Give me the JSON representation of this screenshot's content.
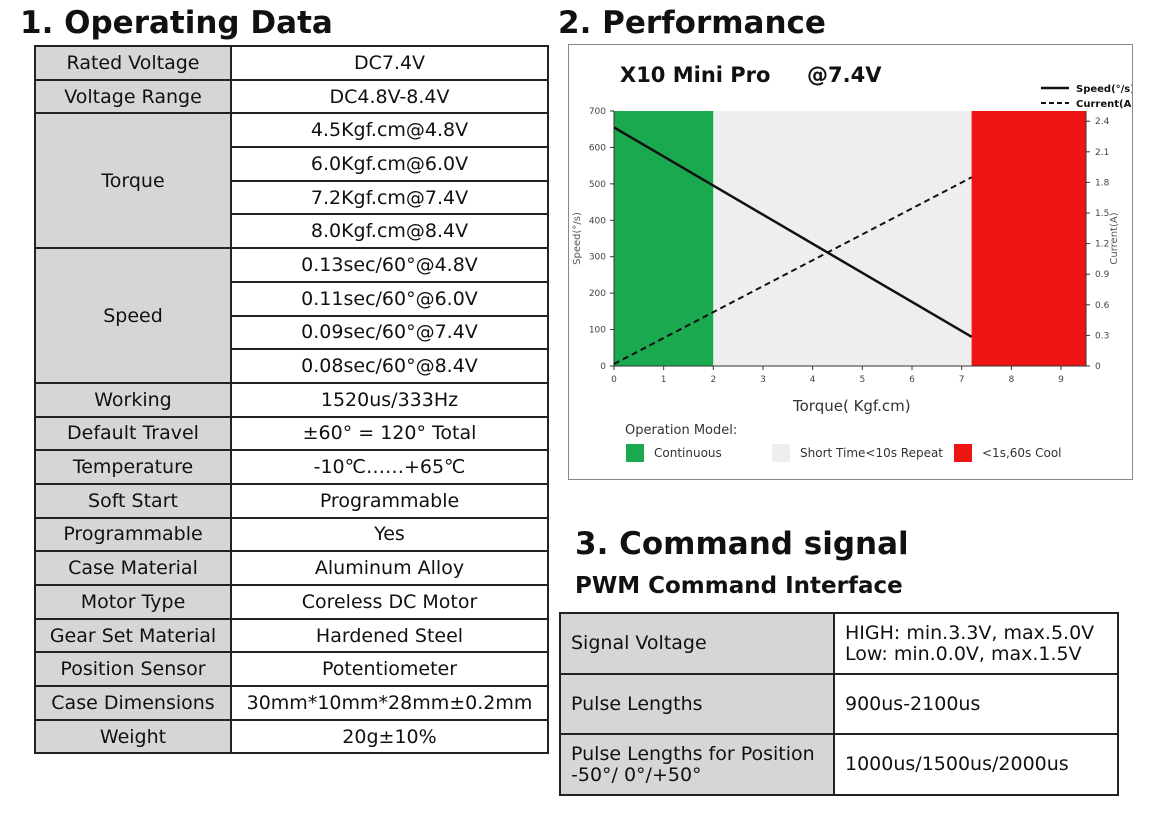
{
  "section1": {
    "title": "1. Operating Data",
    "rows": [
      {
        "label": "Rated Voltage",
        "values": [
          "DC7.4V"
        ]
      },
      {
        "label": "Voltage Range",
        "values": [
          "DC4.8V-8.4V"
        ]
      },
      {
        "label": "Torque",
        "values": [
          "4.5Kgf.cm@4.8V",
          "6.0Kgf.cm@6.0V",
          "7.2Kgf.cm@7.4V",
          "8.0Kgf.cm@8.4V"
        ]
      },
      {
        "label": "Speed",
        "values": [
          "0.13sec/60°@4.8V",
          "0.11sec/60°@6.0V",
          "0.09sec/60°@7.4V",
          "0.08sec/60°@8.4V"
        ]
      },
      {
        "label": "Working",
        "values": [
          "1520us/333Hz"
        ]
      },
      {
        "label": "Default Travel",
        "values": [
          "±60° = 120° Total"
        ]
      },
      {
        "label": "Temperature",
        "values": [
          "-10℃……+65℃"
        ]
      },
      {
        "label": "Soft Start",
        "values": [
          "Programmable"
        ]
      },
      {
        "label": "Programmable",
        "values": [
          "Yes"
        ]
      },
      {
        "label": "Case Material",
        "values": [
          "Aluminum Alloy"
        ]
      },
      {
        "label": "Motor Type",
        "values": [
          "Coreless DC Motor"
        ]
      },
      {
        "label": "Gear Set Material",
        "values": [
          "Hardened Steel"
        ]
      },
      {
        "label": "Position Sensor",
        "values": [
          "Potentiometer"
        ]
      },
      {
        "label": "Case Dimensions",
        "values": [
          "30mm*10mm*28mm±0.2mm"
        ]
      },
      {
        "label": "Weight",
        "values": [
          "20g±10%"
        ]
      }
    ]
  },
  "section2": {
    "title": "2. Performance",
    "chart_data": {
      "type": "line",
      "title": "X10 Mini Pro",
      "subtitle": "@7.4V",
      "xlabel": "Torque( Kgf.cm)",
      "ylabel": "Speed(°/s)",
      "y2label": "Current(A)",
      "xlim": [
        0,
        9.5
      ],
      "ylim": [
        0,
        700
      ],
      "y2lim": [
        0,
        2.5
      ],
      "xticks": [
        0,
        1,
        2,
        3,
        4,
        5,
        6,
        7,
        8,
        9
      ],
      "yticks": [
        0,
        100,
        200,
        300,
        400,
        500,
        600,
        700
      ],
      "y2ticks": [
        0,
        0.3,
        0.6,
        0.9,
        1.2,
        1.5,
        1.8,
        2.1,
        2.4
      ],
      "grid": false,
      "legend": "top-right",
      "series": [
        {
          "name": "Speed(°/s)",
          "axis": "left",
          "style": "solid",
          "x": [
            0,
            7.2
          ],
          "y": [
            655,
            80
          ]
        },
        {
          "name": "Current(A)",
          "axis": "right",
          "style": "dashed",
          "x": [
            0,
            7.2
          ],
          "y": [
            0.02,
            1.85
          ]
        }
      ],
      "zones": [
        {
          "label": "Continuous",
          "color": "#1aa94e",
          "range": [
            0,
            2
          ]
        },
        {
          "label": "Short Time<10s Repeat",
          "color": "#eeeeee",
          "range": [
            2,
            7.2
          ]
        },
        {
          "label": "<1s,60s Cool",
          "color": "#ef1414",
          "range": [
            7.2,
            9.5
          ]
        }
      ],
      "zone_legend_title": "Operation Model:"
    }
  },
  "section3": {
    "title": "3. Command signal",
    "subtitle": "PWM Command Interface",
    "rows": [
      {
        "label": [
          "Signal Voltage"
        ],
        "value": [
          "HIGH: min.3.3V, max.5.0V",
          "Low: min.0.0V, max.1.5V"
        ]
      },
      {
        "label": [
          "Pulse Lengths"
        ],
        "value": [
          "900us-2100us"
        ]
      },
      {
        "label": [
          "Pulse Lengths for Position",
          "-50°/ 0°/+50°"
        ],
        "value": [
          "1000us/1500us/2000us"
        ]
      }
    ]
  }
}
